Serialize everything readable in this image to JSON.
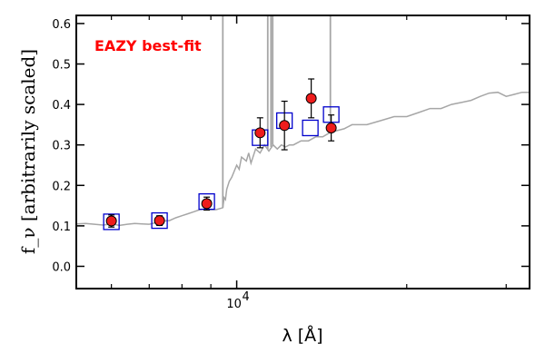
{
  "chart_data": {
    "type": "scatter",
    "xscale": "log",
    "xlim": [
      5200,
      33000
    ],
    "ylim": [
      -0.055,
      0.62
    ],
    "yticks": [
      0.0,
      0.1,
      0.2,
      0.3,
      0.4,
      0.5,
      0.6
    ],
    "ytick_labels": [
      "0.0",
      "0.1",
      "0.2",
      "0.3",
      "0.4",
      "0.5",
      "0.6"
    ],
    "xticks": [
      10000
    ],
    "xtick_label_base": "10",
    "xtick_label_exp": "4",
    "xlabel": "λ [Å]",
    "ylabel": "f_ν [arbitrarily scaled]",
    "annotation": "EAZY best-fit",
    "annotation_color": "#ff0000",
    "grid": false,
    "observed": {
      "marker_color": "#ee1c1c",
      "points": [
        {
          "x": 6000,
          "y": 0.112,
          "yerr": 0.015
        },
        {
          "x": 7300,
          "y": 0.113,
          "yerr": 0.012
        },
        {
          "x": 8850,
          "y": 0.155,
          "yerr": 0.016
        },
        {
          "x": 11000,
          "y": 0.33,
          "yerr": 0.037
        },
        {
          "x": 12150,
          "y": 0.348,
          "yerr": 0.06
        },
        {
          "x": 13550,
          "y": 0.415,
          "yerr": 0.048
        },
        {
          "x": 14700,
          "y": 0.342,
          "yerr": 0.032
        }
      ]
    },
    "model_photometry": {
      "marker_color": "#0000cc",
      "points": [
        {
          "x": 6000,
          "y": 0.11
        },
        {
          "x": 7300,
          "y": 0.113
        },
        {
          "x": 8850,
          "y": 0.16
        },
        {
          "x": 11000,
          "y": 0.318
        },
        {
          "x": 12150,
          "y": 0.36
        },
        {
          "x": 13500,
          "y": 0.342
        },
        {
          "x": 14700,
          "y": 0.375
        }
      ]
    },
    "template_spectrum": {
      "line_color": "#a6a6a6",
      "x": [
        5200,
        5400,
        5600,
        5800,
        6000,
        6200,
        6400,
        6600,
        6800,
        7000,
        7200,
        7400,
        7600,
        7800,
        8000,
        8200,
        8400,
        8600,
        8800,
        9000,
        9200,
        9400,
        9450,
        9480,
        9500,
        9550,
        9600,
        9700,
        9800,
        10000,
        10100,
        10200,
        10400,
        10500,
        10600,
        10800,
        11000,
        11200,
        11400,
        11600,
        11800,
        12000,
        12200,
        12400,
        12600,
        13000,
        13400,
        13800,
        14200,
        14600,
        15000,
        15500,
        16000,
        17000,
        18000,
        19000,
        20000,
        21000,
        22000,
        23000,
        24000,
        25000,
        26000,
        27000,
        28000,
        29000,
        30000,
        31000,
        32000,
        33000
      ],
      "y": [
        0.105,
        0.106,
        0.104,
        0.102,
        0.105,
        0.101,
        0.104,
        0.106,
        0.105,
        0.104,
        0.108,
        0.112,
        0.113,
        0.12,
        0.125,
        0.13,
        0.135,
        0.14,
        0.142,
        0.14,
        0.14,
        0.144,
        0.145,
        0.16,
        0.17,
        0.165,
        0.19,
        0.21,
        0.22,
        0.25,
        0.24,
        0.27,
        0.26,
        0.28,
        0.255,
        0.29,
        0.28,
        0.3,
        0.285,
        0.3,
        0.29,
        0.3,
        0.295,
        0.3,
        0.3,
        0.31,
        0.31,
        0.32,
        0.32,
        0.33,
        0.335,
        0.34,
        0.35,
        0.35,
        0.36,
        0.37,
        0.37,
        0.38,
        0.39,
        0.39,
        0.4,
        0.405,
        0.41,
        0.42,
        0.428,
        0.43,
        0.42,
        0.425,
        0.43,
        0.43
      ],
      "emission_lines": [
        {
          "x": 9450,
          "ymin": 0.145,
          "ymax": 0.62
        },
        {
          "x": 11350,
          "ymin": 0.29,
          "ymax": 0.62
        },
        {
          "x": 11500,
          "ymin": 0.295,
          "ymax": 0.62
        },
        {
          "x": 11580,
          "ymin": 0.3,
          "ymax": 0.62
        },
        {
          "x": 14650,
          "ymin": 0.33,
          "ymax": 0.62
        }
      ]
    }
  }
}
